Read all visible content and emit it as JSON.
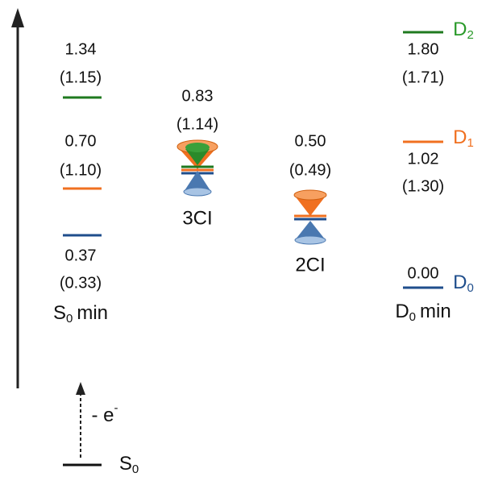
{
  "s0_min": {
    "d2": {
      "value": "1.34",
      "paren": "(1.15)"
    },
    "d1": {
      "value": "0.70",
      "paren": "(1.10)"
    },
    "d0": {
      "value": "0.37",
      "paren": "(0.33)"
    },
    "label": {
      "main": "S",
      "sub": "0",
      "rest": "min"
    }
  },
  "ci3": {
    "value": "0.83",
    "paren": "(1.14)",
    "label": "3CI"
  },
  "ci2": {
    "value": "0.50",
    "paren": "(0.49)",
    "label": "2CI"
  },
  "d0_min": {
    "d2": {
      "value": "1.80",
      "paren": "(1.71)"
    },
    "d1": {
      "value": "1.02",
      "paren": "(1.30)"
    },
    "d0": {
      "value": "0.00"
    },
    "label": {
      "main": "D",
      "sub": "0",
      "rest": "min"
    }
  },
  "states": [
    {
      "main": "D",
      "sub": "2"
    },
    {
      "main": "D",
      "sub": "1"
    },
    {
      "main": "D",
      "sub": "0"
    }
  ],
  "ionization": {
    "main": "- e",
    "sup": "-"
  },
  "ground": {
    "main": "S",
    "sub": "0"
  }
}
